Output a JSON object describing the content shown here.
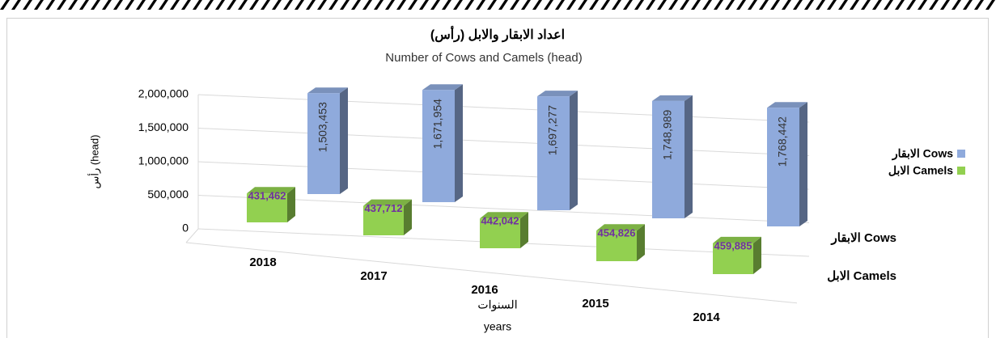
{
  "chart_data": {
    "type": "bar3d",
    "title": "اعداد الابقار والابل (رأس)",
    "subtitle": "Number of Cows and Camels (head)",
    "y_label": "رأس (head)",
    "x_label": [
      "السنوات",
      "years"
    ],
    "categories": [
      "2018",
      "2017",
      "2016",
      "2015",
      "2014"
    ],
    "depth_categories": [
      "الابقار Cows",
      "الابل Camels"
    ],
    "series": [
      {
        "name": "الابقار Cows",
        "color": "#8faadc",
        "values": [
          1503453,
          1671954,
          1697277,
          1748989,
          1768442
        ],
        "value_labels": [
          "1,503,453",
          "1,671,954",
          "1,697,277",
          "1,748,989",
          "1,768,442"
        ]
      },
      {
        "name": "الابل Camels",
        "color": "#92d050",
        "values": [
          431462,
          437712,
          442042,
          454826,
          459885
        ],
        "value_labels": [
          "431,462",
          "437,712",
          "442,042",
          "454,826",
          "459,885"
        ]
      }
    ],
    "ylim": [
      0,
      2000000
    ],
    "yticks": [
      0,
      {
        "value": 500000,
        "label": "500,000"
      },
      {
        "value": 1000000,
        "label": "1,000,000"
      },
      {
        "value": 1500000,
        "label": "1,500,000"
      },
      {
        "value": 2000000,
        "label": "2,000,000"
      }
    ],
    "grid": true,
    "legend": "right"
  }
}
